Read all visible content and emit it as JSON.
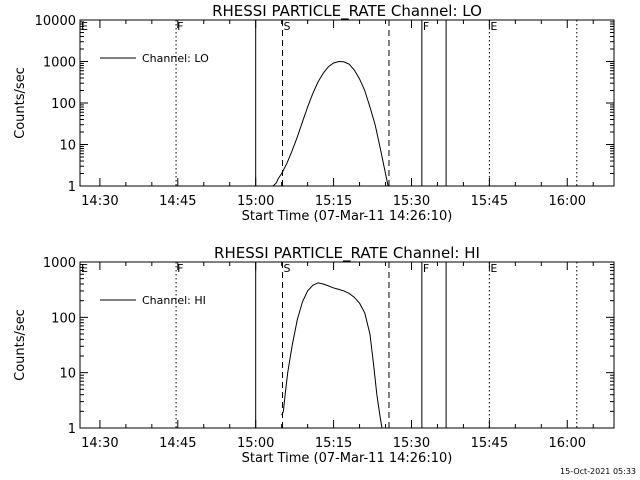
{
  "footer_timestamp": "15-Oct-2021 05:33",
  "chart_data": [
    {
      "type": "line",
      "title": "RHESSI PARTICLE_RATE Channel: LO",
      "xlabel": "Start Time (07-Mar-11 14:26:10)",
      "ylabel": "Counts/sec",
      "y_scale": "log",
      "ylim": [
        1,
        10000
      ],
      "xlim": [
        "14:26:10",
        "16:09:00"
      ],
      "y_ticks": [
        "1",
        "10",
        "100",
        "1000",
        "10000"
      ],
      "x_ticks": [
        "14:30",
        "14:45",
        "15:00",
        "15:15",
        "15:30",
        "15:45",
        "16:00"
      ],
      "legend": [
        "Channel: LO"
      ],
      "legend_position": "top-left",
      "grid": false,
      "markers": [
        {
          "time": "14:26:10",
          "label": "E",
          "style": "none"
        },
        {
          "time": "14:44:40",
          "label": "F",
          "style": "dotted"
        },
        {
          "time": "15:00:00",
          "label": "",
          "style": "solid"
        },
        {
          "time": "15:05:10",
          "label": "S",
          "style": "dashed"
        },
        {
          "time": "15:25:40",
          "label": "",
          "style": "dashed"
        },
        {
          "time": "15:32:00",
          "label": "F",
          "style": "solid"
        },
        {
          "time": "15:36:40",
          "label": "",
          "style": "solid"
        },
        {
          "time": "15:45:00",
          "label": "E",
          "style": "dotted"
        },
        {
          "time": "16:01:50",
          "label": "",
          "style": "dotted"
        }
      ],
      "series": [
        {
          "name": "Channel: LO",
          "points": [
            [
              "15:03:10",
              0.8
            ],
            [
              "15:03:20",
              1.0
            ],
            [
              "15:04:00",
              1.2
            ],
            [
              "15:04:20",
              1.5
            ],
            [
              "15:05:00",
              2.0
            ],
            [
              "15:06:00",
              3.5
            ],
            [
              "15:07:00",
              7
            ],
            [
              "15:08:00",
              15
            ],
            [
              "15:09:00",
              35
            ],
            [
              "15:10:00",
              80
            ],
            [
              "15:11:00",
              170
            ],
            [
              "15:12:00",
              320
            ],
            [
              "15:13:00",
              520
            ],
            [
              "15:14:00",
              750
            ],
            [
              "15:15:00",
              920
            ],
            [
              "15:16:00",
              1000
            ],
            [
              "15:17:00",
              980
            ],
            [
              "15:18:00",
              860
            ],
            [
              "15:19:00",
              620
            ],
            [
              "15:20:00",
              380
            ],
            [
              "15:21:00",
              200
            ],
            [
              "15:22:00",
              80
            ],
            [
              "15:23:00",
              30
            ],
            [
              "15:24:00",
              8
            ],
            [
              "15:24:50",
              2.5
            ],
            [
              "15:25:30",
              1.0
            ],
            [
              "15:25:50",
              0.8
            ]
          ]
        }
      ]
    },
    {
      "type": "line",
      "title": "RHESSI PARTICLE_RATE Channel: HI",
      "xlabel": "Start Time (07-Mar-11 14:26:10)",
      "ylabel": "Counts/sec",
      "y_scale": "log",
      "ylim": [
        1,
        1000
      ],
      "xlim": [
        "14:26:10",
        "16:09:00"
      ],
      "y_ticks": [
        "1",
        "10",
        "100",
        "1000"
      ],
      "x_ticks": [
        "14:30",
        "14:45",
        "15:00",
        "15:15",
        "15:30",
        "15:45",
        "16:00"
      ],
      "legend": [
        "Channel: HI"
      ],
      "legend_position": "top-left",
      "grid": false,
      "markers": [
        {
          "time": "14:26:10",
          "label": "E",
          "style": "none"
        },
        {
          "time": "14:44:40",
          "label": "F",
          "style": "dotted"
        },
        {
          "time": "15:00:00",
          "label": "",
          "style": "solid"
        },
        {
          "time": "15:05:10",
          "label": "S",
          "style": "dashed"
        },
        {
          "time": "15:25:40",
          "label": "",
          "style": "dashed"
        },
        {
          "time": "15:32:00",
          "label": "F",
          "style": "solid"
        },
        {
          "time": "15:36:40",
          "label": "",
          "style": "solid"
        },
        {
          "time": "15:45:00",
          "label": "E",
          "style": "dotted"
        },
        {
          "time": "16:01:50",
          "label": "",
          "style": "dotted"
        }
      ],
      "series": [
        {
          "name": "Channel: HI",
          "points": [
            [
              "15:05:00",
              1.7
            ],
            [
              "15:05:20",
              2.0
            ],
            [
              "15:05:40",
              4.0
            ],
            [
              "15:06:10",
              10
            ],
            [
              "15:07:00",
              30
            ],
            [
              "15:08:00",
              90
            ],
            [
              "15:09:00",
              190
            ],
            [
              "15:10:00",
              300
            ],
            [
              "15:11:00",
              380
            ],
            [
              "15:12:00",
              420
            ],
            [
              "15:13:00",
              400
            ],
            [
              "15:14:00",
              370
            ],
            [
              "15:15:00",
              340
            ],
            [
              "15:16:00",
              320
            ],
            [
              "15:17:00",
              300
            ],
            [
              "15:18:00",
              270
            ],
            [
              "15:19:00",
              230
            ],
            [
              "15:20:00",
              180
            ],
            [
              "15:21:00",
              120
            ],
            [
              "15:22:00",
              50
            ],
            [
              "15:22:40",
              15
            ],
            [
              "15:23:20",
              4
            ],
            [
              "15:24:00",
              1.5
            ],
            [
              "15:24:30",
              0.8
            ]
          ]
        }
      ]
    }
  ]
}
